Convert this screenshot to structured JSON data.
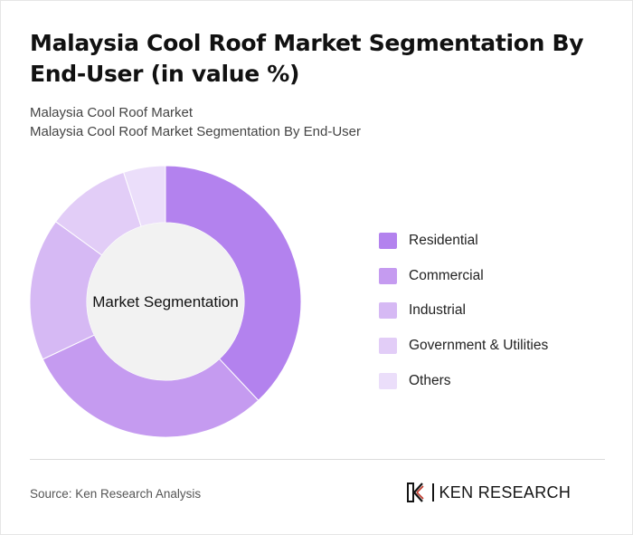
{
  "title": "Malaysia Cool Roof Market Segmentation By End-User (in value %)",
  "subtitle_line1": "Malaysia Cool Roof Market",
  "subtitle_line2": "Malaysia Cool Roof Market Segmentation By End-User",
  "source": "Source: Ken Research Analysis",
  "brand": {
    "name": "KEN RESEARCH",
    "logo_icon": "ken-research-logo-icon"
  },
  "colors": {
    "residential": "#b382ee",
    "commercial": "#c59bf0",
    "industrial": "#d6b9f4",
    "government_utilities": "#e2cdf7",
    "others": "#ebdefa",
    "center": "#f2f2f2"
  },
  "chart_data": {
    "type": "pie",
    "style": "donut",
    "center_label": "Market Segmentation",
    "legend_position": "right",
    "categories": [
      "Residential",
      "Commercial",
      "Industrial",
      "Government & Utilities",
      "Others"
    ],
    "values": [
      38,
      30,
      17,
      10,
      5
    ],
    "colors": [
      "#b382ee",
      "#c59bf0",
      "#d6b9f4",
      "#e2cdf7",
      "#ebdefa"
    ]
  }
}
